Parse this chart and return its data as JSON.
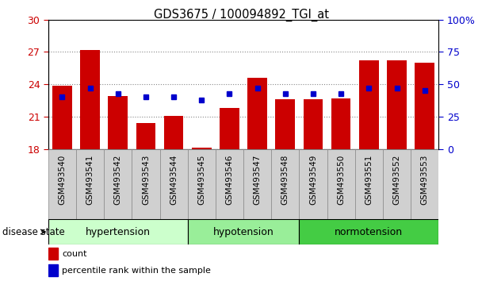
{
  "title": "GDS3675 / 100094892_TGI_at",
  "samples": [
    "GSM493540",
    "GSM493541",
    "GSM493542",
    "GSM493543",
    "GSM493544",
    "GSM493545",
    "GSM493546",
    "GSM493547",
    "GSM493548",
    "GSM493549",
    "GSM493550",
    "GSM493551",
    "GSM493552",
    "GSM493553"
  ],
  "count_values": [
    23.9,
    27.2,
    22.9,
    20.4,
    21.1,
    18.15,
    21.8,
    24.6,
    22.6,
    22.6,
    22.7,
    26.2,
    26.2,
    26.0
  ],
  "percentile_values": [
    40,
    47,
    43,
    40,
    40,
    38,
    43,
    47,
    43,
    43,
    43,
    47,
    47,
    45
  ],
  "ylim_left": [
    18,
    30
  ],
  "ylim_right": [
    0,
    100
  ],
  "yticks_left": [
    18,
    21,
    24,
    27,
    30
  ],
  "yticks_right": [
    0,
    25,
    50,
    75,
    100
  ],
  "bar_color": "#cc0000",
  "dot_color": "#0000cc",
  "groups": [
    {
      "label": "hypertension",
      "indices": [
        0,
        1,
        2,
        3,
        4
      ],
      "color": "#ccffcc"
    },
    {
      "label": "hypotension",
      "indices": [
        5,
        6,
        7,
        8
      ],
      "color": "#99ee99"
    },
    {
      "label": "normotension",
      "indices": [
        9,
        10,
        11,
        12,
        13
      ],
      "color": "#44cc44"
    }
  ],
  "legend_count_label": "count",
  "legend_pct_label": "percentile rank within the sample",
  "disease_state_label": "disease state",
  "base_value": 18,
  "grid_color": "#888888",
  "background_color": "#ffffff",
  "tick_label_color_left": "#cc0000",
  "tick_label_color_right": "#0000cc",
  "xticklabel_bg": "#d0d0d0",
  "group_colors": [
    "#ccffcc",
    "#99ee99",
    "#44cc44"
  ]
}
